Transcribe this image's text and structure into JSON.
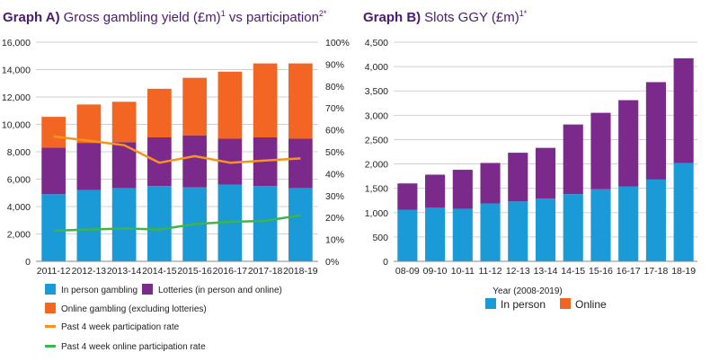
{
  "colors": {
    "in_person": "#1a9ad6",
    "lotteries": "#7b2a8c",
    "online": "#f26522",
    "participation": "#f7941d",
    "online_participation": "#3db54a",
    "grid": "#d0d0d0",
    "title": "#4a1a6e"
  },
  "chart_data": [
    {
      "type": "bar",
      "stacked": true,
      "title_label": "Graph A)",
      "title": "Gross gambling yield (£m)",
      "title_sup1": "1",
      "title_mid": " vs participation",
      "title_sup2": "2*",
      "categories": [
        "2011-12",
        "2012-13",
        "2013-14",
        "2014-15",
        "2015-16",
        "2016-17",
        "2017-18",
        "2018-19"
      ],
      "ylim": [
        0,
        16000
      ],
      "yticks": [
        "0",
        "2,000",
        "4,000",
        "6,000",
        "8,000",
        "10,000",
        "12,000",
        "14,000",
        "16,000"
      ],
      "y2lim": [
        0,
        100
      ],
      "y2ticks": [
        "0%",
        "10%",
        "20%",
        "30%",
        "40%",
        "50%",
        "60%",
        "70%",
        "80%",
        "90%",
        "100%"
      ],
      "grid": true,
      "series": [
        {
          "name": "In person gambling",
          "values": [
            4900,
            5200,
            5350,
            5500,
            5400,
            5600,
            5500,
            5350
          ]
        },
        {
          "name": "Lotteries (in person and online)",
          "values": [
            3400,
            3450,
            3350,
            3550,
            3800,
            3350,
            3550,
            3600
          ]
        },
        {
          "name": "Online gambling (excluding lotteries)",
          "values": [
            2250,
            2800,
            2950,
            3550,
            4200,
            4900,
            5400,
            5500
          ]
        }
      ],
      "lines": [
        {
          "name": "Past 4 week participation rate",
          "axis": "right",
          "values": [
            57,
            55,
            53,
            45,
            48,
            45,
            46,
            47
          ]
        },
        {
          "name": "Past 4 week online participation rate",
          "axis": "right",
          "values": [
            14,
            14.5,
            15,
            14.5,
            17,
            18,
            18.5,
            21
          ]
        }
      ]
    },
    {
      "type": "bar",
      "stacked": true,
      "title_label": "Graph B)",
      "title": "Slots GGY (£m)",
      "title_sup1": "1*",
      "categories": [
        "08-09",
        "09-10",
        "10-11",
        "11-12",
        "12-13",
        "13-14",
        "14-15",
        "15-16",
        "16-17",
        "17-18",
        "18-19"
      ],
      "xlabel": "Year (2008-2019)",
      "ylim": [
        0,
        4500
      ],
      "yticks": [
        "0",
        "500",
        "1,000",
        "1,500",
        "2,000",
        "2,500",
        "3,000",
        "3,500",
        "4,000",
        "4,500"
      ],
      "grid": true,
      "series": [
        {
          "name": "In person",
          "values": [
            1060,
            1100,
            1080,
            1190,
            1230,
            1290,
            1380,
            1480,
            1540,
            1680,
            2020
          ]
        },
        {
          "name": "Online",
          "values": [
            540,
            680,
            800,
            830,
            1000,
            1040,
            1430,
            1570,
            1770,
            2000,
            2150
          ]
        }
      ]
    }
  ]
}
